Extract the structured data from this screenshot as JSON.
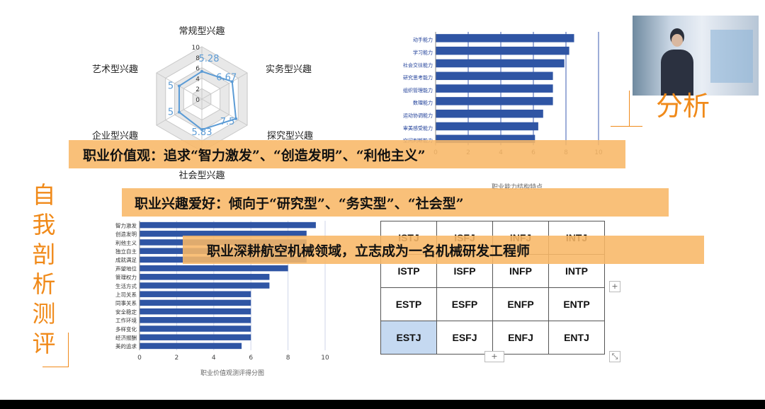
{
  "left_title": "自我剖析测评",
  "right_title_fragment": "分析",
  "banners": {
    "values": "职业价值观：追求“智力激发”、“创造发明”、“利他主义”",
    "interests": "职业兴趣爱好：倾向于“研究型”、“务实型”、“社会型”",
    "career": "职业深耕航空机械领域，立志成为一名机械研发工程师"
  },
  "radar": {
    "axes": [
      "常规型兴趣",
      "实务型兴趣",
      "探究型兴趣",
      "社会型兴趣",
      "企业型兴趣",
      "艺术型兴趣"
    ],
    "scale_ticks": [
      "10",
      "8",
      "6",
      "4",
      "2",
      "0"
    ],
    "values": [
      5.28,
      6.67,
      7.5,
      5.83,
      5,
      5
    ],
    "value_labels": [
      "5.28",
      "6.67",
      "7.5",
      "5.83",
      "5",
      "5"
    ],
    "max": 10,
    "color": "#5b9bd5"
  },
  "ability_chart": {
    "title": "职业能力结构特点",
    "categories": [
      "动手能力",
      "学习能力",
      "社会交往能力",
      "研究思考能力",
      "组织管理能力",
      "数理能力",
      "运动协调能力",
      "审美感受能力",
      "空间判断能力"
    ],
    "values": [
      8.5,
      8.2,
      7.9,
      7.2,
      7.2,
      7.2,
      6.6,
      6.3,
      6.1
    ],
    "x_ticks": [
      "0",
      "2",
      "4",
      "6",
      "8",
      "10"
    ],
    "xlim": [
      0,
      10
    ],
    "color": "#2f55a4"
  },
  "values_chart": {
    "title": "职业价值观测评得分图",
    "categories": [
      "智力激发",
      "创造发明",
      "利他主义",
      "独立自主",
      "成就满足",
      "声望地位",
      "管理权力",
      "生活方式",
      "上司关系",
      "同事关系",
      "安全稳定",
      "工作环境",
      "多样变化",
      "经济报酬",
      "美的追求"
    ],
    "values": [
      9.5,
      9,
      9,
      9,
      9,
      8,
      7,
      7,
      6,
      6,
      6,
      6,
      6,
      6,
      5.5
    ],
    "x_ticks": [
      "0",
      "2",
      "4",
      "6",
      "8",
      "10"
    ],
    "xlim": [
      0,
      10
    ],
    "color": "#2f55a4"
  },
  "mbti": {
    "rows": [
      [
        "ISTJ",
        "ISFJ",
        "INFJ",
        "INTJ"
      ],
      [
        "ISTP",
        "ISFP",
        "INFP",
        "INTP"
      ],
      [
        "ESTP",
        "ESFP",
        "ENFP",
        "ENTP"
      ],
      [
        "ESTJ",
        "ESFJ",
        "ENFJ",
        "ENTJ"
      ]
    ],
    "highlight": "ESTJ",
    "highlight_color": "#c5d9f1"
  }
}
